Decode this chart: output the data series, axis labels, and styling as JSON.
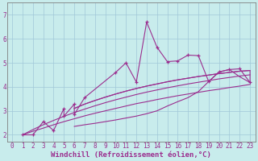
{
  "bg_color": "#c8ecec",
  "line_color": "#9b2d8e",
  "grid_color": "#a0c8d8",
  "xlabel": "Windchill (Refroidissement éolien,°C)",
  "xlim": [
    -0.5,
    23.5
  ],
  "ylim": [
    1.7,
    7.5
  ],
  "yticks": [
    2,
    3,
    4,
    5,
    6,
    7
  ],
  "xticks": [
    0,
    1,
    2,
    3,
    4,
    5,
    6,
    7,
    8,
    9,
    10,
    11,
    12,
    13,
    14,
    15,
    16,
    17,
    18,
    19,
    20,
    21,
    22,
    23
  ],
  "data_x": [
    1,
    2,
    3,
    4,
    5,
    5,
    6,
    6,
    7,
    10,
    11,
    12,
    13,
    14,
    15,
    16,
    17,
    18,
    19,
    20,
    21,
    22,
    23
  ],
  "data_y": [
    2.0,
    2.0,
    2.55,
    2.18,
    3.1,
    2.78,
    3.28,
    2.85,
    3.55,
    4.6,
    5.0,
    4.2,
    6.7,
    5.65,
    5.05,
    5.08,
    5.32,
    5.3,
    4.22,
    4.62,
    4.72,
    4.75,
    4.18
  ],
  "curve1_x": [
    1,
    2,
    3,
    4,
    5,
    6,
    7,
    8,
    9,
    10,
    11,
    12,
    13,
    14,
    15,
    16,
    17,
    18,
    19,
    20,
    21,
    22,
    23
  ],
  "curve1_y": [
    2.0,
    2.15,
    2.28,
    2.42,
    2.55,
    2.67,
    2.79,
    2.9,
    3.0,
    3.1,
    3.2,
    3.3,
    3.38,
    3.47,
    3.55,
    3.63,
    3.7,
    3.77,
    3.84,
    3.9,
    3.97,
    4.03,
    4.1
  ],
  "curve2_x": [
    1,
    2,
    3,
    4,
    5,
    6,
    7,
    8,
    9,
    10,
    11,
    12,
    13,
    14,
    15,
    16,
    17,
    18,
    19,
    20,
    21,
    22,
    23
  ],
  "curve2_y": [
    2.0,
    2.22,
    2.42,
    2.6,
    2.77,
    2.93,
    3.07,
    3.21,
    3.34,
    3.46,
    3.57,
    3.68,
    3.78,
    3.87,
    3.96,
    4.04,
    4.12,
    4.19,
    4.26,
    4.33,
    4.39,
    4.45,
    4.5
  ],
  "curve3_x": [
    6,
    7,
    8,
    9,
    10,
    11,
    12,
    13,
    14,
    15,
    16,
    17,
    18,
    19,
    20,
    21,
    22,
    23
  ],
  "curve3_y": [
    3.1,
    3.28,
    3.43,
    3.57,
    3.7,
    3.82,
    3.93,
    4.03,
    4.12,
    4.21,
    4.29,
    4.36,
    4.43,
    4.49,
    4.55,
    4.6,
    4.65,
    4.68
  ],
  "envelope_x": [
    6,
    7,
    8,
    9,
    10,
    11,
    12,
    13,
    14,
    15,
    16,
    17,
    18,
    19,
    20,
    21,
    22,
    23,
    23,
    22,
    21,
    20,
    19,
    18,
    17,
    16,
    15,
    14,
    13,
    12,
    11,
    10,
    9,
    8,
    7,
    6
  ],
  "envelope_y": [
    3.1,
    3.28,
    3.43,
    3.57,
    3.7,
    3.82,
    3.93,
    4.03,
    4.12,
    4.21,
    4.29,
    4.36,
    4.43,
    4.49,
    4.55,
    4.6,
    4.65,
    4.68,
    4.18,
    4.42,
    4.72,
    4.62,
    4.22,
    3.8,
    3.55,
    3.38,
    3.2,
    3.0,
    2.88,
    2.78,
    2.7,
    2.62,
    2.55,
    2.48,
    2.42,
    2.35
  ],
  "tick_fontsize": 5.5,
  "label_fontsize": 6.5
}
